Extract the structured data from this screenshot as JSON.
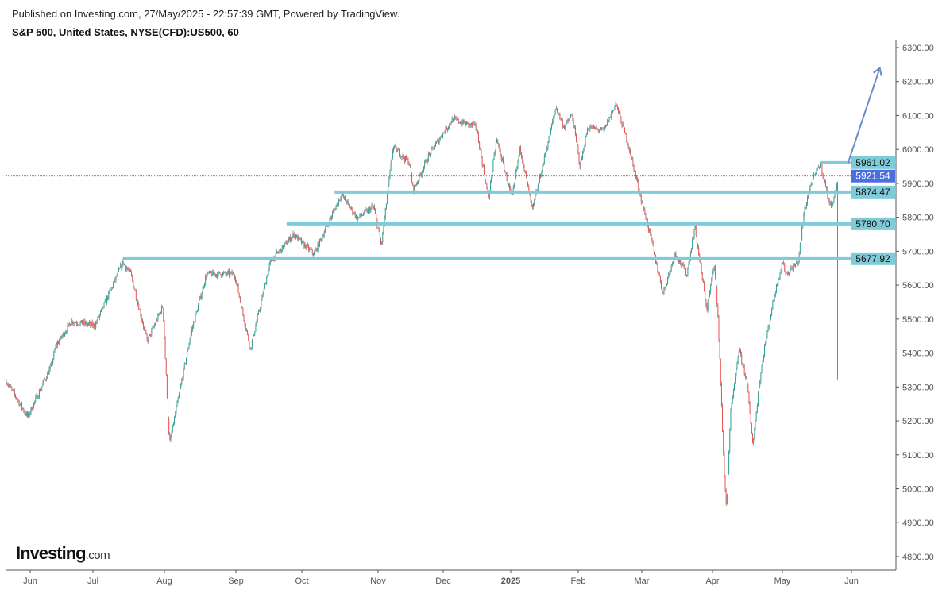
{
  "header": {
    "published": "Published on Investing.com, 27/May/2025 - 22:57:39 GMT, Powered by TradingView.",
    "title": "S&P 500, United States, NYSE(CFD):US500, 60"
  },
  "logo": {
    "main": "Investing",
    "suffix": ".com"
  },
  "colors": {
    "up": "#26a69a",
    "down": "#ef5350",
    "level": "#7fcbd8",
    "current": "#4a6ee0",
    "arrow": "#6b8cc9"
  },
  "chart_data": {
    "type": "candlestick",
    "title": "S&P 500, United States, NYSE(CFD):US500, 60",
    "x_unit": "months since Jun 2024 (0 = Jun 2024)",
    "xticks": [
      "Jun",
      "Jul",
      "Aug",
      "Sep",
      "Oct",
      "Nov",
      "Dec",
      "2025",
      "Feb",
      "Mar",
      "Apr",
      "May",
      "Jun"
    ],
    "yticks": [
      "6300.00",
      "6200.00",
      "6100.00",
      "6000.00",
      "5900.00",
      "5800.00",
      "5700.00",
      "5600.00",
      "5500.00",
      "5400.00",
      "5300.00",
      "5200.00",
      "5100.00",
      "5000.00",
      "4900.00",
      "4800.00"
    ],
    "ylim": [
      4770,
      6320
    ],
    "path": [
      [
        -0.38,
        5317
      ],
      [
        -0.04,
        5212
      ],
      [
        0.34,
        5364
      ],
      [
        0.41,
        5422
      ],
      [
        0.66,
        5493
      ],
      [
        1.03,
        5481
      ],
      [
        1.42,
        5668
      ],
      [
        1.53,
        5633
      ],
      [
        1.76,
        5434
      ],
      [
        1.98,
        5539
      ],
      [
        2.07,
        5130
      ],
      [
        2.37,
        5457
      ],
      [
        2.59,
        5633
      ],
      [
        2.98,
        5633
      ],
      [
        3.22,
        5411
      ],
      [
        3.52,
        5668
      ],
      [
        3.88,
        5750
      ],
      [
        4.16,
        5692
      ],
      [
        4.52,
        5867
      ],
      [
        4.73,
        5797
      ],
      [
        4.94,
        5832
      ],
      [
        5.05,
        5715
      ],
      [
        5.23,
        6007
      ],
      [
        5.48,
        5961
      ],
      [
        5.54,
        5879
      ],
      [
        5.78,
        5984
      ],
      [
        6.14,
        6089
      ],
      [
        6.49,
        6066
      ],
      [
        6.67,
        5855
      ],
      [
        6.79,
        6031
      ],
      [
        7.02,
        5855
      ],
      [
        7.14,
        6007
      ],
      [
        7.32,
        5820
      ],
      [
        7.55,
        6019
      ],
      [
        7.67,
        6124
      ],
      [
        7.79,
        6066
      ],
      [
        7.91,
        6101
      ],
      [
        8.03,
        5949
      ],
      [
        8.15,
        6066
      ],
      [
        8.4,
        6054
      ],
      [
        8.59,
        6136
      ],
      [
        8.78,
        6019
      ],
      [
        8.96,
        5879
      ],
      [
        9.13,
        5738
      ],
      [
        9.3,
        5575
      ],
      [
        9.47,
        5692
      ],
      [
        9.64,
        5633
      ],
      [
        9.75,
        5773
      ],
      [
        9.92,
        5528
      ],
      [
        10.03,
        5668
      ],
      [
        10.09,
        5457
      ],
      [
        10.17,
        5036
      ],
      [
        10.2,
        4943
      ],
      [
        10.26,
        5223
      ],
      [
        10.38,
        5411
      ],
      [
        10.49,
        5317
      ],
      [
        10.58,
        5130
      ],
      [
        10.66,
        5294
      ],
      [
        10.74,
        5411
      ],
      [
        10.89,
        5575
      ],
      [
        11.0,
        5668
      ],
      [
        11.06,
        5633
      ],
      [
        11.23,
        5668
      ],
      [
        11.31,
        5809
      ],
      [
        11.4,
        5890
      ],
      [
        11.55,
        5961
      ],
      [
        11.69,
        5832
      ],
      [
        11.75,
        5855
      ],
      [
        11.8,
        5921
      ]
    ],
    "levels": [
      {
        "value": 5961.02,
        "label": "5961.02",
        "from": 11.55
      },
      {
        "value": 5874.47,
        "label": "5874.47",
        "from": 4.43
      },
      {
        "value": 5780.7,
        "label": "5780.70",
        "from": 3.77
      },
      {
        "value": 5677.92,
        "label": "5677.92",
        "from": 1.42
      }
    ],
    "current": {
      "value": 5921.54,
      "label": "5921.54"
    },
    "annotation": {
      "type": "arrow-up",
      "from": [
        11.95,
        5960
      ],
      "to": [
        12.41,
        6240
      ]
    }
  }
}
